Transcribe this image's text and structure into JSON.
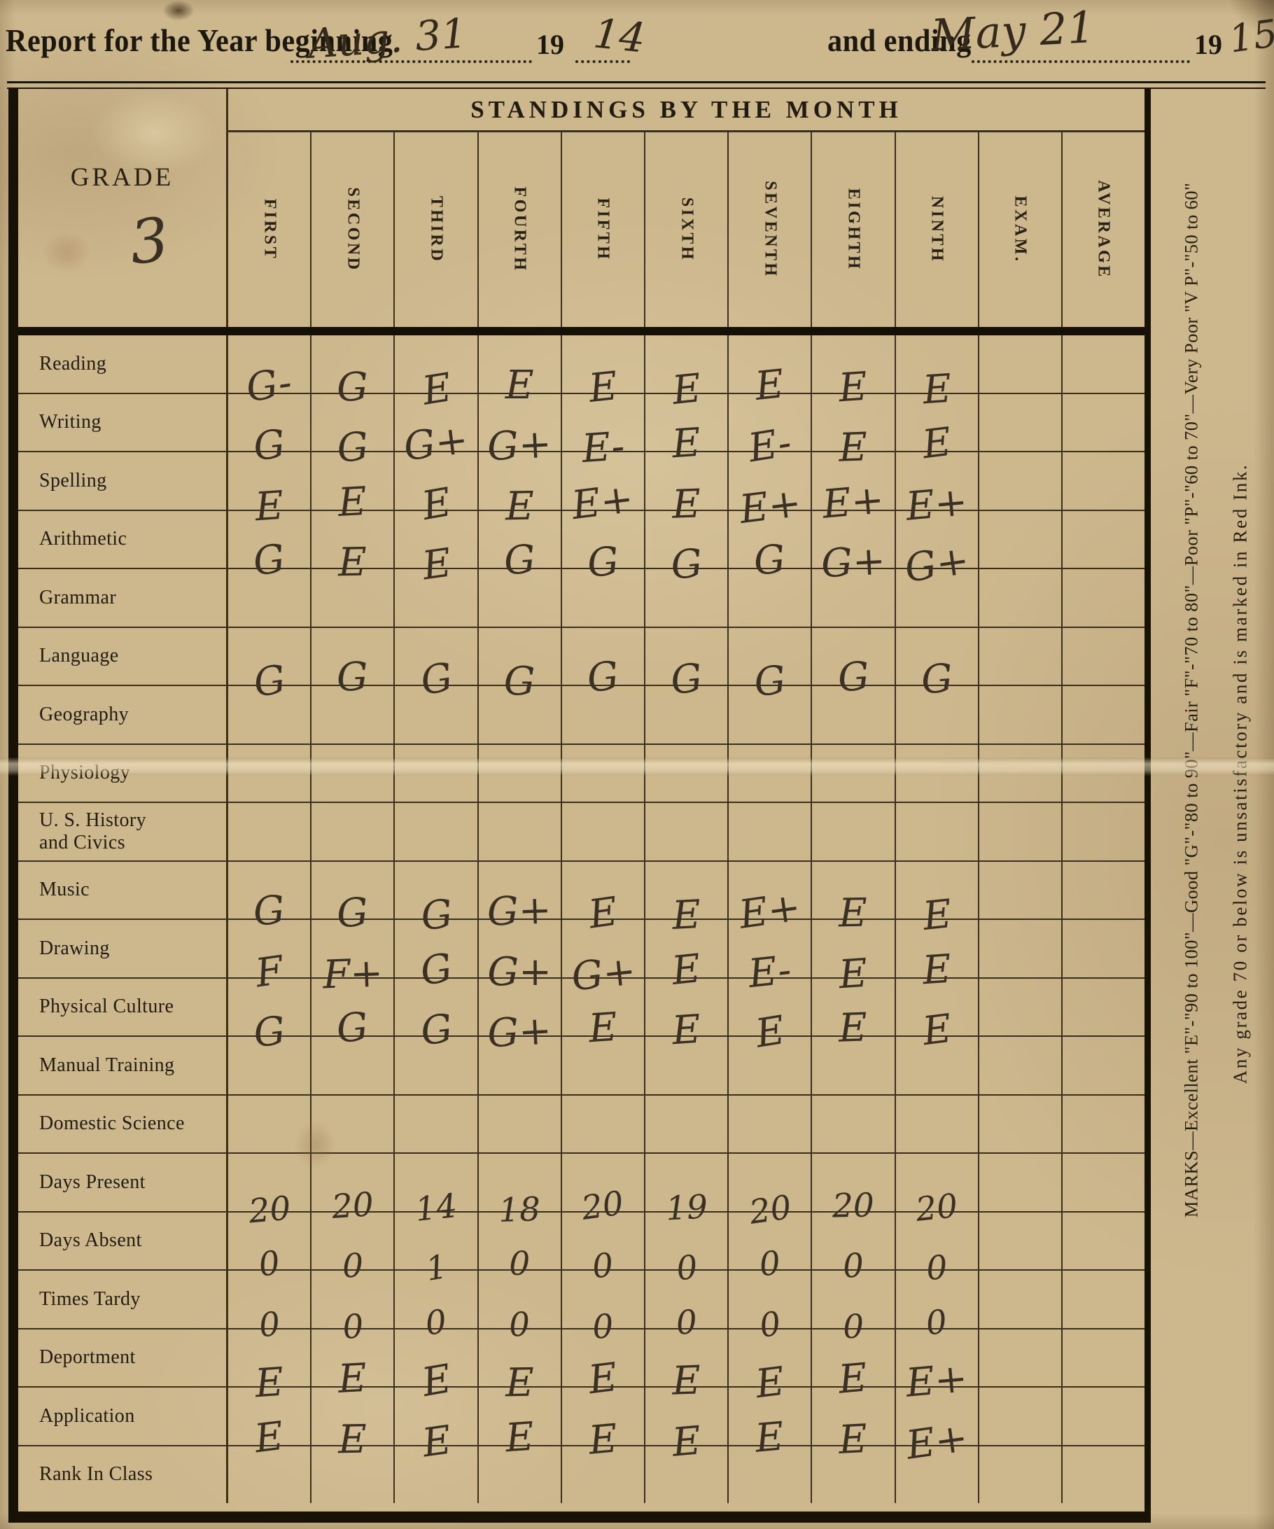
{
  "document": {
    "header": {
      "prefix": "Report for the Year beginning",
      "begin_date": "Aug. 31",
      "year_prefix_begin": "19",
      "begin_year": "14",
      "connector": "and ending",
      "end_date": "May 21",
      "year_prefix_end": "19",
      "end_year": "15."
    },
    "table": {
      "standings_title": "STANDINGS BY THE MONTH",
      "grade_label": "GRADE",
      "grade_value": "3",
      "month_columns": [
        "FIRST",
        "SECOND",
        "THIRD",
        "FOURTH",
        "FIFTH",
        "SIXTH",
        "SEVENTH",
        "EIGHTH",
        "NINTH",
        "EXAM.",
        "AVERAGE"
      ],
      "rows": [
        {
          "label": "Reading",
          "marks": [
            "G-",
            "G",
            "E",
            "E",
            "E",
            "E",
            "E",
            "E",
            "E"
          ]
        },
        {
          "label": "Writing",
          "marks": [
            "G",
            "G",
            "G+",
            "G+",
            "E-",
            "E",
            "E-",
            "E",
            "E"
          ]
        },
        {
          "label": "Spelling",
          "marks": [
            "E",
            "E",
            "E",
            "E",
            "E+",
            "E",
            "E+",
            "E+",
            "E+"
          ]
        },
        {
          "label": "Arithmetic",
          "marks": [
            "G",
            "E",
            "E",
            "G",
            "G",
            "G",
            "G",
            "G+",
            "G+"
          ]
        },
        {
          "label": "Grammar",
          "marks": []
        },
        {
          "label": "Language",
          "marks": [
            "G",
            "G",
            "G",
            "G",
            "G",
            "G",
            "G",
            "G",
            "G"
          ]
        },
        {
          "label": "Geography",
          "marks": []
        },
        {
          "label": "Physiology",
          "marks": []
        },
        {
          "label": "U. S. History\nand Civics",
          "marks": []
        },
        {
          "label": "Music",
          "marks": [
            "G",
            "G",
            "G",
            "G+",
            "E",
            "E",
            "E+",
            "E",
            "E"
          ]
        },
        {
          "label": "Drawing",
          "marks": [
            "F",
            "F+",
            "G",
            "G+",
            "G+",
            "E",
            "E-",
            "E",
            "E"
          ]
        },
        {
          "label": "Physical Culture",
          "marks": [
            "G",
            "G",
            "G",
            "G+",
            "E",
            "E",
            "E",
            "E",
            "E"
          ]
        },
        {
          "label": "Manual Training",
          "marks": []
        },
        {
          "label": "Domestic Science",
          "marks": []
        },
        {
          "label": "Days Present",
          "marks": [
            "20",
            "20",
            "14",
            "18",
            "20",
            "19",
            "20",
            "20",
            "20"
          ]
        },
        {
          "label": "Days Absent",
          "marks": [
            "0",
            "0",
            "1",
            "0",
            "0",
            "0",
            "0",
            "0",
            "0"
          ]
        },
        {
          "label": "Times Tardy",
          "marks": [
            "0",
            "0",
            "0",
            "0",
            "0",
            "0",
            "0",
            "0",
            "0"
          ]
        },
        {
          "label": "Deportment",
          "marks": [
            "E",
            "E",
            "E",
            "E",
            "E",
            "E",
            "E",
            "E",
            "E+"
          ]
        },
        {
          "label": "Application",
          "marks": [
            "E",
            "E",
            "E",
            "E",
            "E",
            "E",
            "E",
            "E",
            "E+"
          ]
        },
        {
          "label": "Rank In Class",
          "marks": []
        }
      ]
    },
    "side_notes": {
      "marks_legend": "MARKS—Excellent \"E\"-\"90 to 100\"—Good \"G\"-\"80 to 90\"—Fair \"F\"-\"70 to 80\"—Poor \"P\"-\"60 to 70\"—Very Poor \"V P\"-\"50 to 60\"",
      "red_ink_note": "Any grade 70 or below is unsatisfactory and is marked in Red Ink."
    },
    "colors": {
      "paper": "#cdb78d",
      "printed_ink": "#241e13",
      "handwriting_ink": "#3a3023",
      "rule_line": "#261d0d"
    }
  }
}
